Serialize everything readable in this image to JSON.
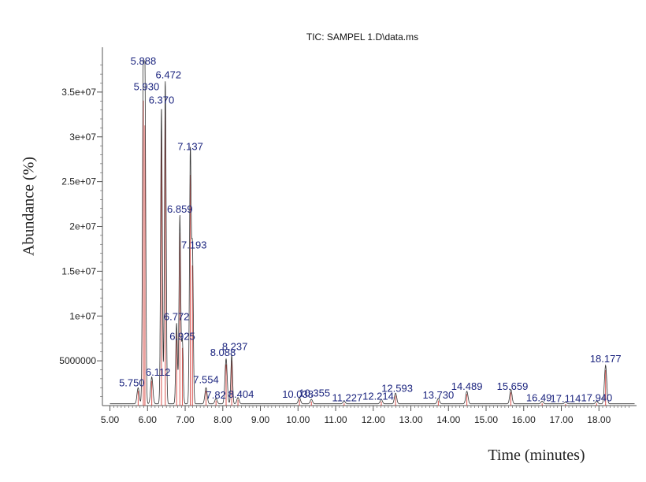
{
  "chart_data": {
    "type": "line",
    "title": "TIC: SAMPEL 1.D\\data.ms",
    "xlabel": "Time (minutes)",
    "ylabel": "Abundance (%)",
    "xlim": [
      4.8,
      19.0
    ],
    "ylim": [
      0,
      40000000
    ],
    "x_ticks": [
      5.0,
      6.0,
      7.0,
      8.0,
      9.0,
      10.0,
      11.0,
      12.0,
      13.0,
      14.0,
      15.0,
      16.0,
      17.0,
      18.0
    ],
    "x_tick_labels": [
      "5.00",
      "6.00",
      "7.00",
      "8.00",
      "9.00",
      "10.00",
      "11.00",
      "12.00",
      "13.00",
      "14.00",
      "15.00",
      "16.00",
      "17.00",
      "18.00"
    ],
    "y_ticks": [
      5000000,
      10000000,
      15000000,
      20000000,
      25000000,
      30000000,
      35000000
    ],
    "y_tick_labels": [
      "5000000",
      "1e+07",
      "1.5e+07",
      "2e+07",
      "2.5e+07",
      "3e+07",
      "3.5e+07"
    ],
    "grid": false,
    "peaks": [
      {
        "rt": 5.75,
        "label": "5.750",
        "height": 1800000
      },
      {
        "rt": 5.888,
        "label": "5.888",
        "height": 37000000
      },
      {
        "rt": 5.93,
        "label": "5.930",
        "height": 34000000
      },
      {
        "rt": 6.112,
        "label": "6.112",
        "height": 3000000
      },
      {
        "rt": 6.37,
        "label": "6.370",
        "height": 33000000
      },
      {
        "rt": 6.472,
        "label": "6.472",
        "height": 36000000
      },
      {
        "rt": 6.772,
        "label": "6.772",
        "height": 9000000
      },
      {
        "rt": 6.859,
        "label": "6.859",
        "height": 21000000
      },
      {
        "rt": 6.925,
        "label": "6.925",
        "height": 7000000
      },
      {
        "rt": 7.137,
        "label": "7.137",
        "height": 28000000
      },
      {
        "rt": 7.193,
        "label": "7.193",
        "height": 17000000
      },
      {
        "rt": 7.554,
        "label": "7.554",
        "height": 1800000
      },
      {
        "rt": 7.82,
        "label": "7.82",
        "height": 600000
      },
      {
        "rt": 8.088,
        "label": "8.088",
        "height": 5000000
      },
      {
        "rt": 8.237,
        "label": "8.237",
        "height": 5500000
      },
      {
        "rt": 8.404,
        "label": "8.404",
        "height": 700000
      },
      {
        "rt": 10.038,
        "label": "10.038",
        "height": 700000
      },
      {
        "rt": 10.355,
        "label": "10.355",
        "height": 500000
      },
      {
        "rt": 11.227,
        "label": "11.227",
        "height": 300000
      },
      {
        "rt": 12.214,
        "label": "12.214",
        "height": 500000
      },
      {
        "rt": 12.593,
        "label": "12.593",
        "height": 1200000
      },
      {
        "rt": 13.73,
        "label": "13.730",
        "height": 600000
      },
      {
        "rt": 14.489,
        "label": "14.489",
        "height": 1400000
      },
      {
        "rt": 15.659,
        "label": "15.659",
        "height": 1600000
      },
      {
        "rt": 16.49,
        "label": "16.49",
        "height": 300000
      },
      {
        "rt": 17.114,
        "label": "17.114",
        "height": 200000
      },
      {
        "rt": 17.94,
        "label": "17.940",
        "height": 300000
      },
      {
        "rt": 18.177,
        "label": "18.177",
        "height": 4300000
      }
    ],
    "colors": {
      "trace": "#333333",
      "marker": "#d9534f",
      "label": "#1a237e",
      "axis": "#555555"
    }
  }
}
